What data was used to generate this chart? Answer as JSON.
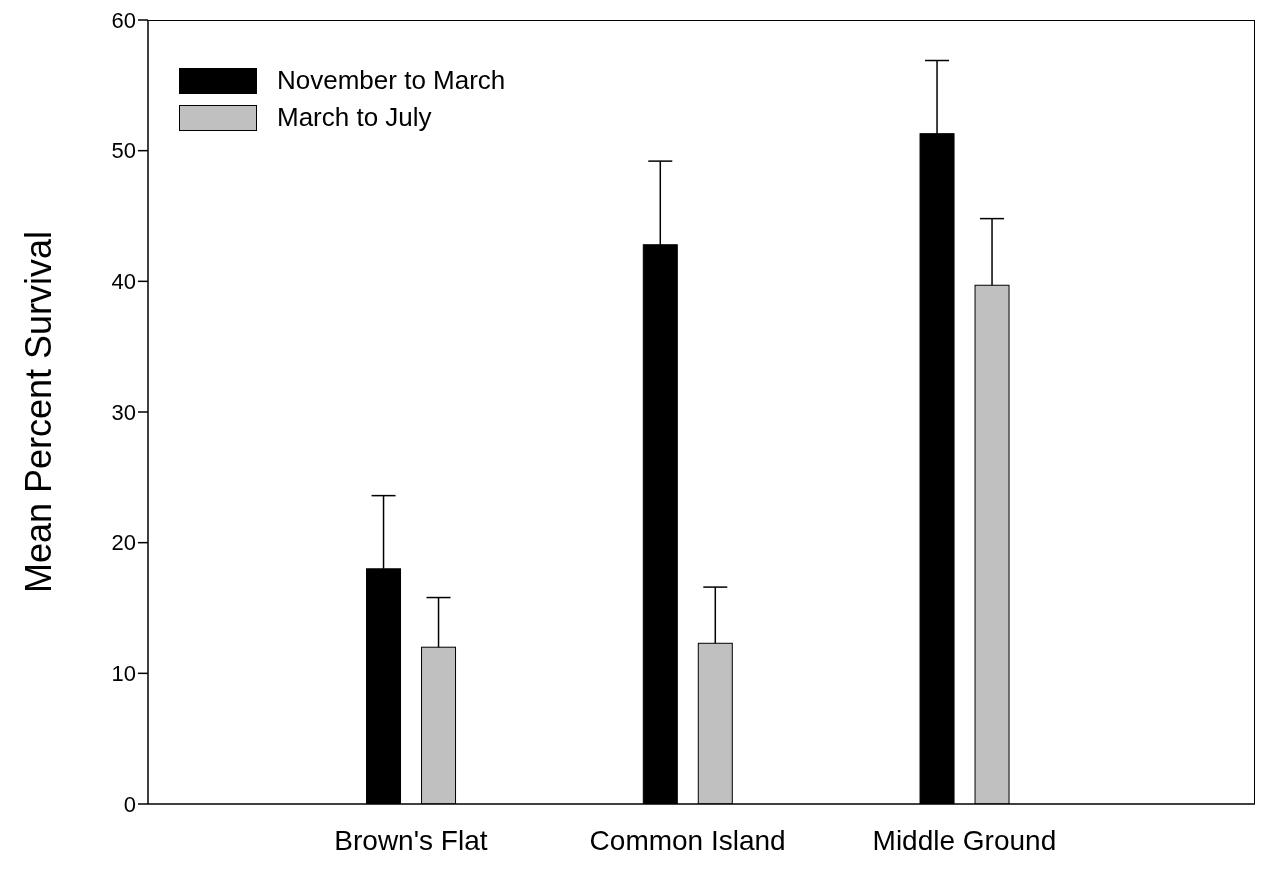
{
  "chart_data": {
    "type": "bar",
    "ylabel": "Mean Percent Survival",
    "categories": [
      "Brown's Flat",
      "Common Island",
      "Middle Ground"
    ],
    "series": [
      {
        "name": "November to March",
        "color": "#000000",
        "values": [
          18.0,
          42.8,
          51.3
        ],
        "errors": [
          [
            18.0,
            23.6
          ],
          [
            42.8,
            49.2
          ],
          [
            51.3,
            56.9
          ]
        ]
      },
      {
        "name": "March to July",
        "color": "#c0c0c0",
        "values": [
          12.0,
          12.3,
          39.7
        ],
        "errors": [
          [
            12.0,
            15.8
          ],
          [
            12.3,
            16.6
          ],
          [
            39.7,
            44.8
          ]
        ]
      }
    ],
    "ylim": [
      0,
      60
    ],
    "yticks": [
      0,
      10,
      20,
      30,
      40,
      50,
      60
    ],
    "legend": "top left",
    "grid": false
  }
}
